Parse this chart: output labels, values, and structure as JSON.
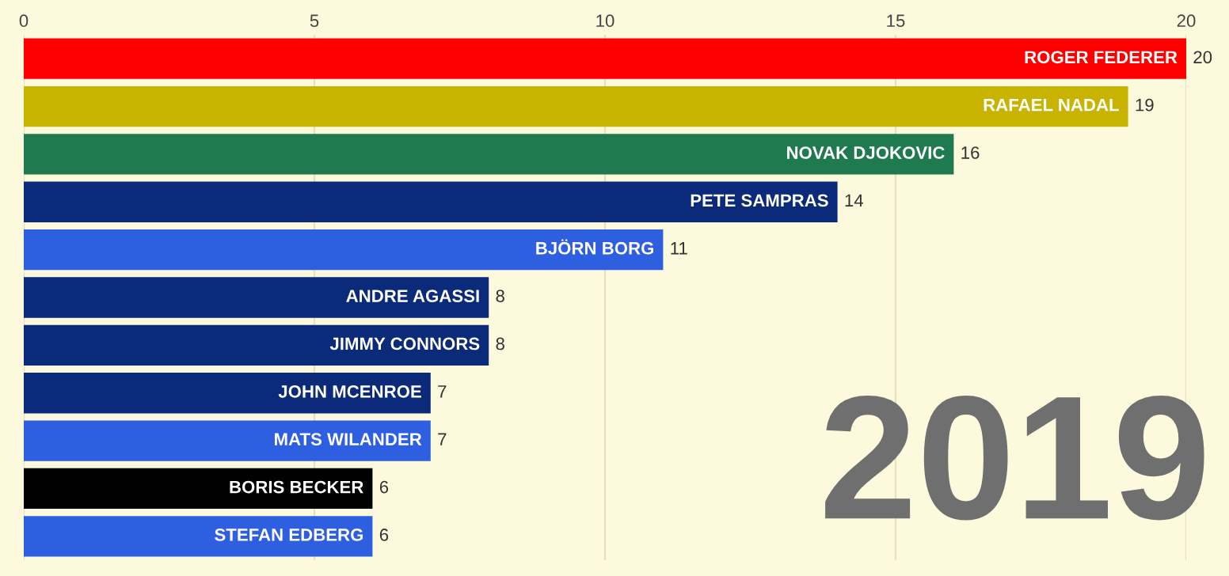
{
  "chart_data": {
    "type": "bar",
    "orientation": "horizontal",
    "categories": [
      "ROGER FEDERER",
      "RAFAEL NADAL",
      "NOVAK DJOKOVIC",
      "PETE SAMPRAS",
      "BJÖRN BORG",
      "ANDRE AGASSI",
      "JIMMY CONNORS",
      "JOHN MCENROE",
      "MATS WILANDER",
      "BORIS BECKER",
      "STEFAN EDBERG"
    ],
    "values": [
      20,
      19,
      16,
      14,
      11,
      8,
      8,
      7,
      7,
      6,
      6
    ],
    "colors": [
      "#fe0000",
      "#c8b400",
      "#1f7a50",
      "#0b2a7a",
      "#2d5fe0",
      "#0b2a7a",
      "#0b2a7a",
      "#0b2a7a",
      "#2d5fe0",
      "#000000",
      "#2d5fe0"
    ],
    "xlim": [
      0,
      20
    ],
    "xticks": [
      0,
      5,
      10,
      15,
      20
    ],
    "grid": "x",
    "data_labels": true,
    "legend": false,
    "annotations": [
      "2019"
    ]
  }
}
